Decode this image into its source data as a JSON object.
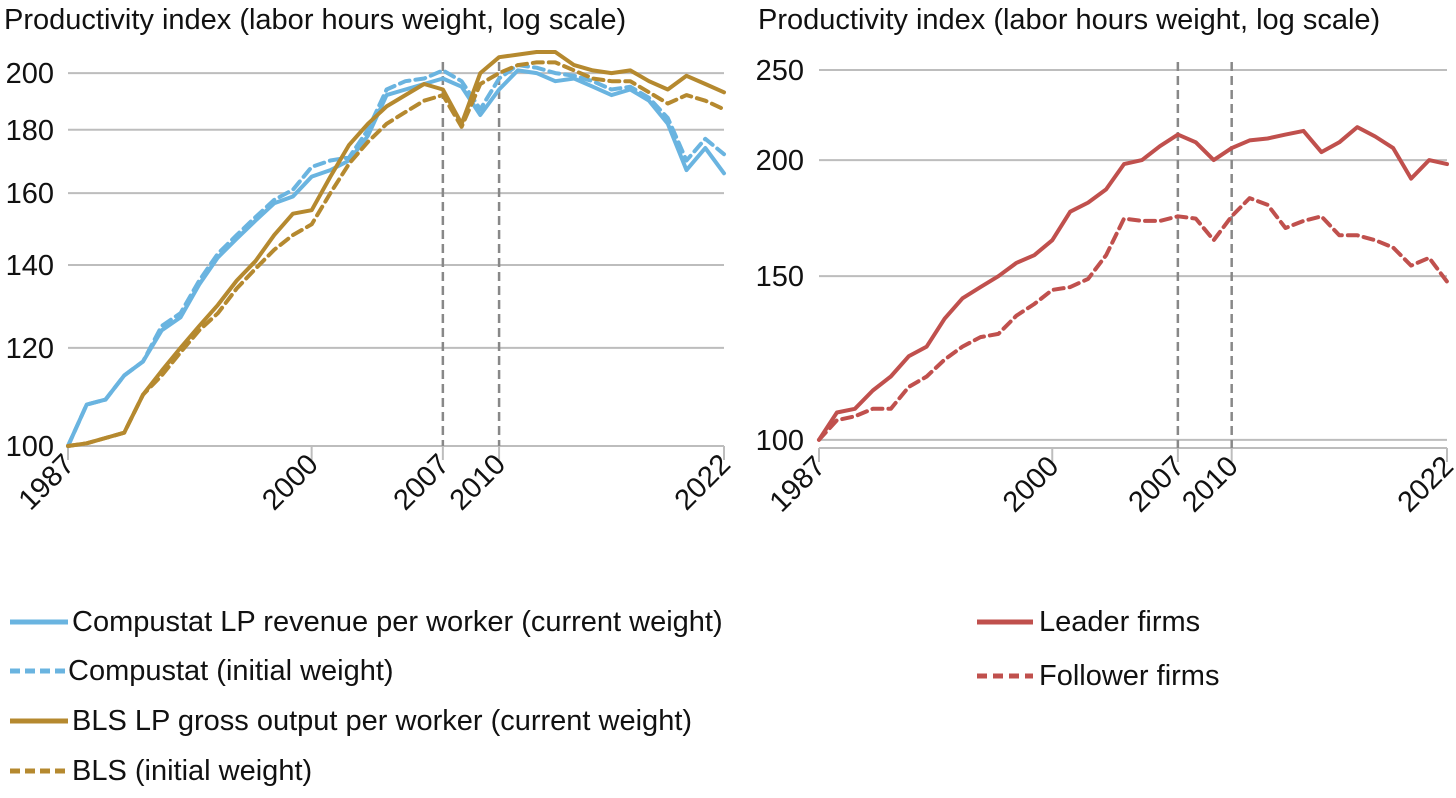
{
  "chart_data": [
    {
      "type": "line",
      "ylabel": "Productivity index (labor hours weight, log scale)",
      "xlabel": "",
      "yscale": "log",
      "ylim": [
        100,
        208
      ],
      "yticks": [
        100,
        120,
        140,
        160,
        180,
        200
      ],
      "xlim": [
        1987,
        2022
      ],
      "xticks": [
        1987,
        2000,
        2007,
        2010,
        2022
      ],
      "vlines": [
        2007,
        2010
      ],
      "grid": "horizontal",
      "legend_position": "bottom",
      "x": [
        1987,
        1988,
        1989,
        1990,
        1991,
        1992,
        1993,
        1994,
        1995,
        1996,
        1997,
        1998,
        1999,
        2000,
        2001,
        2002,
        2003,
        2004,
        2005,
        2006,
        2007,
        2008,
        2009,
        2010,
        2011,
        2012,
        2013,
        2014,
        2015,
        2016,
        2017,
        2018,
        2019,
        2020,
        2021,
        2022
      ],
      "series": [
        {
          "name": "Compustat LP revenue per worker (current weight)",
          "color": "#6ab4e0",
          "style": "solid",
          "values": [
            100,
            108,
            109,
            114,
            117,
            124,
            127,
            135,
            142,
            147,
            152,
            157,
            159,
            165,
            167,
            170,
            178,
            192,
            194,
            196,
            198,
            195,
            185,
            194,
            201,
            200,
            197,
            198,
            195,
            192,
            194,
            190,
            182,
            167,
            174,
            166
          ]
        },
        {
          "name": "Compustat (initial weight)",
          "color": "#6ab4e0",
          "style": "dashed",
          "values": [
            100,
            108,
            109,
            114,
            117,
            125,
            128,
            136,
            143,
            148,
            153,
            158,
            161,
            168,
            170,
            171,
            180,
            194,
            197,
            198,
            201,
            197,
            187,
            198,
            203,
            202,
            200,
            199,
            197,
            194,
            195,
            191,
            184,
            170,
            177,
            172
          ]
        },
        {
          "name": "BLS LP gross output per worker (current weight)",
          "color": "#b5892f",
          "style": "solid",
          "values": [
            100,
            100.5,
            101.5,
            102.5,
            110,
            115,
            120,
            125,
            130,
            136,
            141,
            148,
            154,
            155,
            165,
            175,
            182,
            188,
            192,
            196,
            194,
            182,
            200,
            206,
            207,
            208,
            208,
            203,
            201,
            200,
            201,
            197,
            194,
            199,
            196,
            193
          ]
        },
        {
          "name": "BLS (initial weight)",
          "color": "#b5892f",
          "style": "dashed",
          "values": [
            100,
            100.5,
            101.5,
            102.5,
            110,
            114,
            119,
            124,
            128,
            134,
            139,
            144,
            148,
            151,
            160,
            169,
            176,
            182,
            186,
            190,
            192,
            181,
            196,
            200,
            203,
            204,
            204,
            201,
            198,
            197,
            197,
            193,
            189,
            192,
            190,
            187
          ]
        }
      ]
    },
    {
      "type": "line",
      "ylabel": "Productivity index (labor hours weight, log scale)",
      "xlabel": "",
      "yscale": "log",
      "ylim": [
        98,
        255
      ],
      "yticks": [
        100,
        150,
        200,
        250
      ],
      "xlim": [
        1987,
        2022
      ],
      "xticks": [
        1987,
        2000,
        2007,
        2010,
        2022
      ],
      "vlines": [
        2007,
        2010
      ],
      "grid": "horizontal",
      "legend_position": "bottom",
      "x": [
        1987,
        1988,
        1989,
        1990,
        1991,
        1992,
        1993,
        1994,
        1995,
        1996,
        1997,
        1998,
        1999,
        2000,
        2001,
        2002,
        2003,
        2004,
        2005,
        2006,
        2007,
        2008,
        2009,
        2010,
        2011,
        2012,
        2013,
        2014,
        2015,
        2016,
        2017,
        2018,
        2019,
        2020,
        2021,
        2022
      ],
      "series": [
        {
          "name": "Leader firms",
          "color": "#c0504d",
          "style": "solid",
          "values": [
            100,
            107,
            108,
            113,
            117,
            123,
            126,
            135,
            142,
            146,
            150,
            155,
            158,
            164,
            176,
            180,
            186,
            198,
            200,
            207,
            213,
            209,
            200,
            206,
            210,
            211,
            213,
            215,
            204,
            209,
            217,
            212,
            206,
            191,
            200,
            198
          ]
        },
        {
          "name": "Follower firms",
          "color": "#c0504d",
          "style": "dashed",
          "values": [
            100,
            105,
            106,
            108,
            108,
            114,
            117,
            122,
            126,
            129,
            130,
            136,
            140,
            145,
            146,
            149,
            158,
            173,
            172,
            172,
            174,
            173,
            164,
            174,
            182,
            179,
            169,
            172,
            174,
            166,
            166,
            164,
            161,
            154,
            157,
            148
          ]
        }
      ]
    }
  ]
}
